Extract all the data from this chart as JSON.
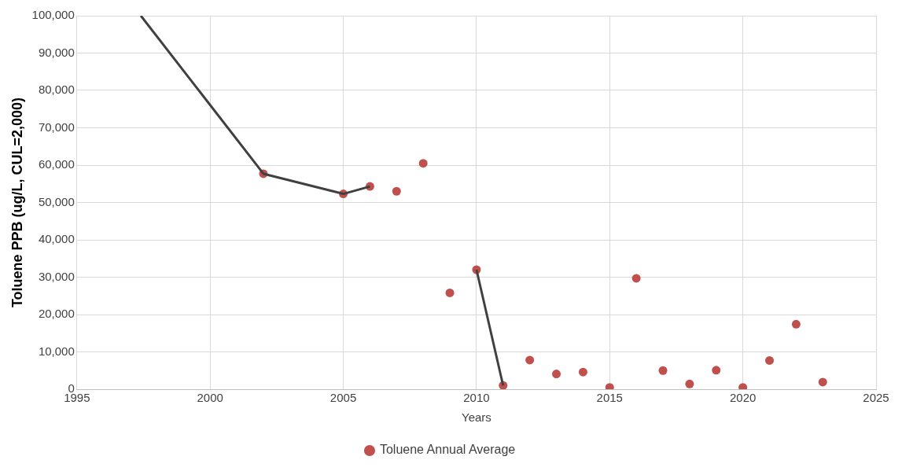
{
  "chart_data": {
    "type": "scatter",
    "xlabel": "Years",
    "ylabel": "Toluene PPB (ug/L, CUL=2,000)",
    "xlim": [
      1995,
      2025
    ],
    "xticks": [
      1995,
      2000,
      2005,
      2010,
      2015,
      2020,
      2025
    ],
    "ylim": [
      0,
      100000
    ],
    "yticks": [
      {
        "value": 0,
        "label": "0"
      },
      {
        "value": 10000,
        "label": "10,000"
      },
      {
        "value": 20000,
        "label": "20,000"
      },
      {
        "value": 30000,
        "label": "30,000"
      },
      {
        "value": 40000,
        "label": "40,000"
      },
      {
        "value": 50000,
        "label": "50,000"
      },
      {
        "value": 60000,
        "label": "60,000"
      },
      {
        "value": 70000,
        "label": "70,000"
      },
      {
        "value": 80000,
        "label": "80,000"
      },
      {
        "value": 90000,
        "label": "90,000"
      },
      {
        "value": 100000,
        "label": "100,000"
      }
    ],
    "grid": true,
    "legend": "bottom",
    "series": [
      {
        "type": "line",
        "color": "#404040",
        "marker": "none",
        "x": [
          1997.4,
          2002,
          2005,
          2006
        ],
        "values": [
          100000,
          57700,
          52300,
          54300
        ]
      },
      {
        "type": "line",
        "color": "#404040",
        "marker": "none",
        "x": [
          2010,
          2011
        ],
        "values": [
          32000,
          1000
        ]
      },
      {
        "name": "Toluene Annual Average",
        "color": "#c0504d",
        "marker": "circle",
        "x": [
          2002,
          2005,
          2006,
          2007,
          2008,
          2009,
          2010,
          2011,
          2012,
          2013,
          2014,
          2015,
          2016,
          2017,
          2018,
          2019,
          2020,
          2021,
          2022,
          2023
        ],
        "values": [
          57700,
          52300,
          54300,
          53000,
          60500,
          25800,
          32000,
          1000,
          7800,
          4100,
          4600,
          500,
          29700,
          5000,
          1400,
          5100,
          500,
          7700,
          17400,
          1900
        ]
      }
    ]
  }
}
